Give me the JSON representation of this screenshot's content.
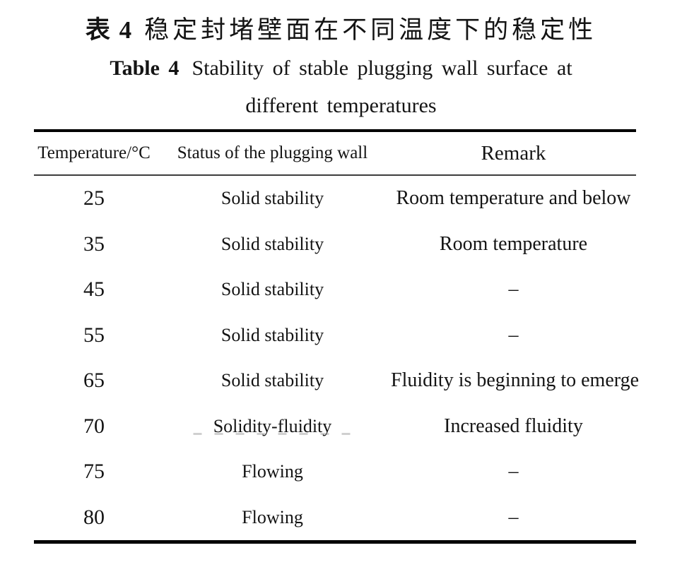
{
  "page": {
    "background": "#ffffff",
    "text_color": "#141414",
    "rule_color": "#000000"
  },
  "title": {
    "zh": {
      "label": "表 4",
      "text": "稳定封堵壁面在不同温度下的稳定性"
    },
    "en": {
      "label": "Table 4",
      "line1": "Stability of stable plugging wall surface at",
      "line2": "different temperatures"
    }
  },
  "table": {
    "columns": [
      "Temperature/°C",
      "Status of the plugging wall",
      "Remark"
    ],
    "rows": [
      {
        "temperature": "25",
        "status": "Solid stability",
        "remark": "Room temperature and below"
      },
      {
        "temperature": "35",
        "status": "Solid stability",
        "remark": "Room temperature"
      },
      {
        "temperature": "45",
        "status": "Solid stability",
        "remark": "–"
      },
      {
        "temperature": "55",
        "status": "Solid stability",
        "remark": "–"
      },
      {
        "temperature": "65",
        "status": "Solid stability",
        "remark": "Fluidity is beginning to emerge"
      },
      {
        "temperature": "70",
        "status": "Solidity-fluidity",
        "remark": "Increased fluidity",
        "status_artifact": true
      },
      {
        "temperature": "75",
        "status": "Flowing",
        "remark": "–"
      },
      {
        "temperature": "80",
        "status": "Flowing",
        "remark": "–"
      }
    ]
  }
}
